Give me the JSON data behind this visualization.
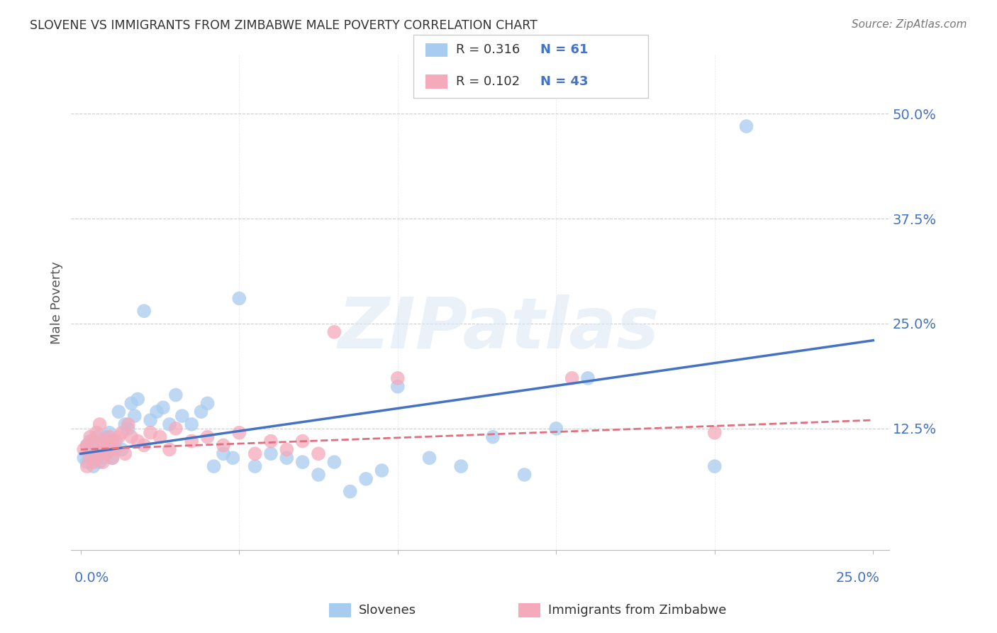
{
  "title": "SLOVENE VS IMMIGRANTS FROM ZIMBABWE MALE POVERTY CORRELATION CHART",
  "source": "Source: ZipAtlas.com",
  "ylabel": "Male Poverty",
  "blue_color": "#A8CCF0",
  "pink_color": "#F5AABB",
  "blue_line_color": "#4472C4",
  "pink_line_color": "#E07080",
  "background_color": "#FFFFFF",
  "grid_color": "#CCCCCC",
  "xlim": [
    0.0,
    0.25
  ],
  "ylim": [
    -0.02,
    0.55
  ],
  "legend_r1": "R = 0.316",
  "legend_n1": "N = 61",
  "legend_r2": "R = 0.102",
  "legend_n2": "N = 43",
  "slov_x": [
    0.001,
    0.002,
    0.002,
    0.003,
    0.003,
    0.003,
    0.004,
    0.004,
    0.005,
    0.005,
    0.005,
    0.006,
    0.006,
    0.007,
    0.007,
    0.008,
    0.008,
    0.009,
    0.009,
    0.01,
    0.01,
    0.011,
    0.012,
    0.013,
    0.014,
    0.015,
    0.016,
    0.017,
    0.018,
    0.02,
    0.022,
    0.024,
    0.026,
    0.028,
    0.03,
    0.032,
    0.035,
    0.038,
    0.04,
    0.042,
    0.045,
    0.048,
    0.05,
    0.055,
    0.06,
    0.065,
    0.07,
    0.075,
    0.08,
    0.085,
    0.09,
    0.095,
    0.1,
    0.11,
    0.12,
    0.13,
    0.14,
    0.15,
    0.16,
    0.2,
    0.21
  ],
  "slov_y": [
    0.09,
    0.085,
    0.105,
    0.095,
    0.1,
    0.11,
    0.08,
    0.1,
    0.09,
    0.095,
    0.115,
    0.085,
    0.1,
    0.105,
    0.09,
    0.095,
    0.115,
    0.1,
    0.12,
    0.09,
    0.1,
    0.11,
    0.145,
    0.1,
    0.13,
    0.125,
    0.155,
    0.14,
    0.16,
    0.265,
    0.135,
    0.145,
    0.15,
    0.13,
    0.165,
    0.14,
    0.13,
    0.145,
    0.155,
    0.08,
    0.095,
    0.09,
    0.28,
    0.08,
    0.095,
    0.09,
    0.085,
    0.07,
    0.085,
    0.05,
    0.065,
    0.075,
    0.175,
    0.09,
    0.08,
    0.115,
    0.07,
    0.125,
    0.185,
    0.08,
    0.485
  ],
  "zimb_x": [
    0.001,
    0.002,
    0.002,
    0.003,
    0.003,
    0.004,
    0.004,
    0.005,
    0.005,
    0.006,
    0.006,
    0.007,
    0.007,
    0.008,
    0.008,
    0.009,
    0.01,
    0.01,
    0.011,
    0.012,
    0.013,
    0.014,
    0.015,
    0.016,
    0.018,
    0.02,
    0.022,
    0.025,
    0.028,
    0.03,
    0.035,
    0.04,
    0.045,
    0.05,
    0.055,
    0.06,
    0.065,
    0.07,
    0.075,
    0.08,
    0.1,
    0.155,
    0.2
  ],
  "zimb_y": [
    0.1,
    0.08,
    0.105,
    0.09,
    0.115,
    0.085,
    0.11,
    0.095,
    0.12,
    0.1,
    0.13,
    0.085,
    0.11,
    0.095,
    0.105,
    0.115,
    0.09,
    0.11,
    0.1,
    0.115,
    0.12,
    0.095,
    0.13,
    0.115,
    0.11,
    0.105,
    0.12,
    0.115,
    0.1,
    0.125,
    0.11,
    0.115,
    0.105,
    0.12,
    0.095,
    0.11,
    0.1,
    0.11,
    0.095,
    0.24,
    0.185,
    0.185,
    0.12
  ],
  "blue_trendline": [
    0.095,
    0.23
  ],
  "pink_trendline": [
    0.1,
    0.135
  ]
}
